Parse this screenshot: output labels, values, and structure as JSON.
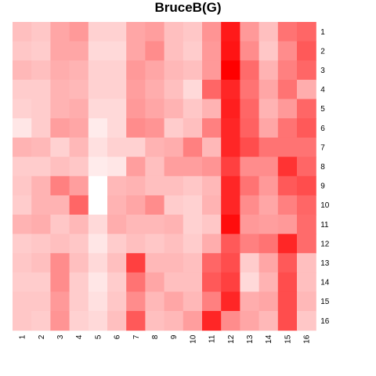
{
  "chart_data": {
    "type": "heatmap",
    "title": "BruceB(G)",
    "xlabel": "",
    "ylabel": "",
    "x_labels": [
      "1",
      "2",
      "3",
      "4",
      "5",
      "6",
      "7",
      "8",
      "9",
      "10",
      "11",
      "12",
      "13",
      "14",
      "15",
      "16"
    ],
    "y_labels": [
      "1",
      "2",
      "3",
      "4",
      "5",
      "6",
      "7",
      "8",
      "9",
      "10",
      "11",
      "12",
      "13",
      "14",
      "15",
      "16"
    ],
    "color_low": "#ffffff",
    "color_high": "#ff0000",
    "value_range": [
      0,
      1
    ],
    "grid": false,
    "legend": "none",
    "values": [
      [
        0.25,
        0.22,
        0.35,
        0.4,
        0.18,
        0.18,
        0.35,
        0.38,
        0.25,
        0.22,
        0.42,
        0.9,
        0.4,
        0.25,
        0.55,
        0.6
      ],
      [
        0.22,
        0.2,
        0.35,
        0.35,
        0.15,
        0.15,
        0.35,
        0.45,
        0.25,
        0.2,
        0.4,
        0.92,
        0.45,
        0.22,
        0.45,
        0.65
      ],
      [
        0.28,
        0.25,
        0.32,
        0.3,
        0.18,
        0.18,
        0.4,
        0.35,
        0.28,
        0.25,
        0.4,
        1.0,
        0.58,
        0.3,
        0.5,
        0.6
      ],
      [
        0.2,
        0.2,
        0.3,
        0.28,
        0.18,
        0.18,
        0.38,
        0.32,
        0.25,
        0.15,
        0.6,
        0.85,
        0.55,
        0.35,
        0.55,
        0.32
      ],
      [
        0.18,
        0.2,
        0.3,
        0.32,
        0.15,
        0.15,
        0.4,
        0.35,
        0.3,
        0.22,
        0.3,
        0.88,
        0.6,
        0.3,
        0.4,
        0.6
      ],
      [
        0.1,
        0.2,
        0.38,
        0.35,
        0.08,
        0.15,
        0.45,
        0.42,
        0.2,
        0.25,
        0.5,
        0.85,
        0.62,
        0.35,
        0.55,
        0.65
      ],
      [
        0.3,
        0.28,
        0.18,
        0.28,
        0.12,
        0.18,
        0.18,
        0.3,
        0.32,
        0.5,
        0.28,
        0.85,
        0.7,
        0.55,
        0.55,
        0.55
      ],
      [
        0.2,
        0.2,
        0.25,
        0.22,
        0.08,
        0.1,
        0.38,
        0.25,
        0.38,
        0.38,
        0.42,
        0.75,
        0.45,
        0.45,
        0.8,
        0.6
      ],
      [
        0.22,
        0.3,
        0.5,
        0.38,
        0.0,
        0.28,
        0.3,
        0.25,
        0.25,
        0.22,
        0.28,
        0.85,
        0.55,
        0.4,
        0.65,
        0.7
      ],
      [
        0.2,
        0.3,
        0.3,
        0.6,
        0.0,
        0.3,
        0.35,
        0.45,
        0.2,
        0.18,
        0.3,
        0.85,
        0.45,
        0.35,
        0.5,
        0.6
      ],
      [
        0.3,
        0.32,
        0.22,
        0.28,
        0.15,
        0.32,
        0.28,
        0.28,
        0.3,
        0.18,
        0.22,
        0.95,
        0.4,
        0.38,
        0.4,
        0.58
      ],
      [
        0.2,
        0.22,
        0.25,
        0.22,
        0.1,
        0.2,
        0.25,
        0.22,
        0.25,
        0.2,
        0.32,
        0.65,
        0.5,
        0.55,
        0.85,
        0.58
      ],
      [
        0.22,
        0.25,
        0.45,
        0.25,
        0.15,
        0.25,
        0.75,
        0.28,
        0.28,
        0.25,
        0.6,
        0.7,
        0.2,
        0.35,
        0.65,
        0.25
      ],
      [
        0.2,
        0.2,
        0.45,
        0.2,
        0.1,
        0.2,
        0.55,
        0.35,
        0.25,
        0.25,
        0.65,
        0.75,
        0.15,
        0.3,
        0.7,
        0.25
      ],
      [
        0.22,
        0.22,
        0.4,
        0.2,
        0.12,
        0.22,
        0.45,
        0.28,
        0.35,
        0.28,
        0.5,
        0.85,
        0.32,
        0.35,
        0.7,
        0.28
      ],
      [
        0.22,
        0.2,
        0.42,
        0.18,
        0.15,
        0.25,
        0.65,
        0.25,
        0.28,
        0.38,
        0.85,
        0.45,
        0.35,
        0.28,
        0.7,
        0.22
      ]
    ]
  }
}
